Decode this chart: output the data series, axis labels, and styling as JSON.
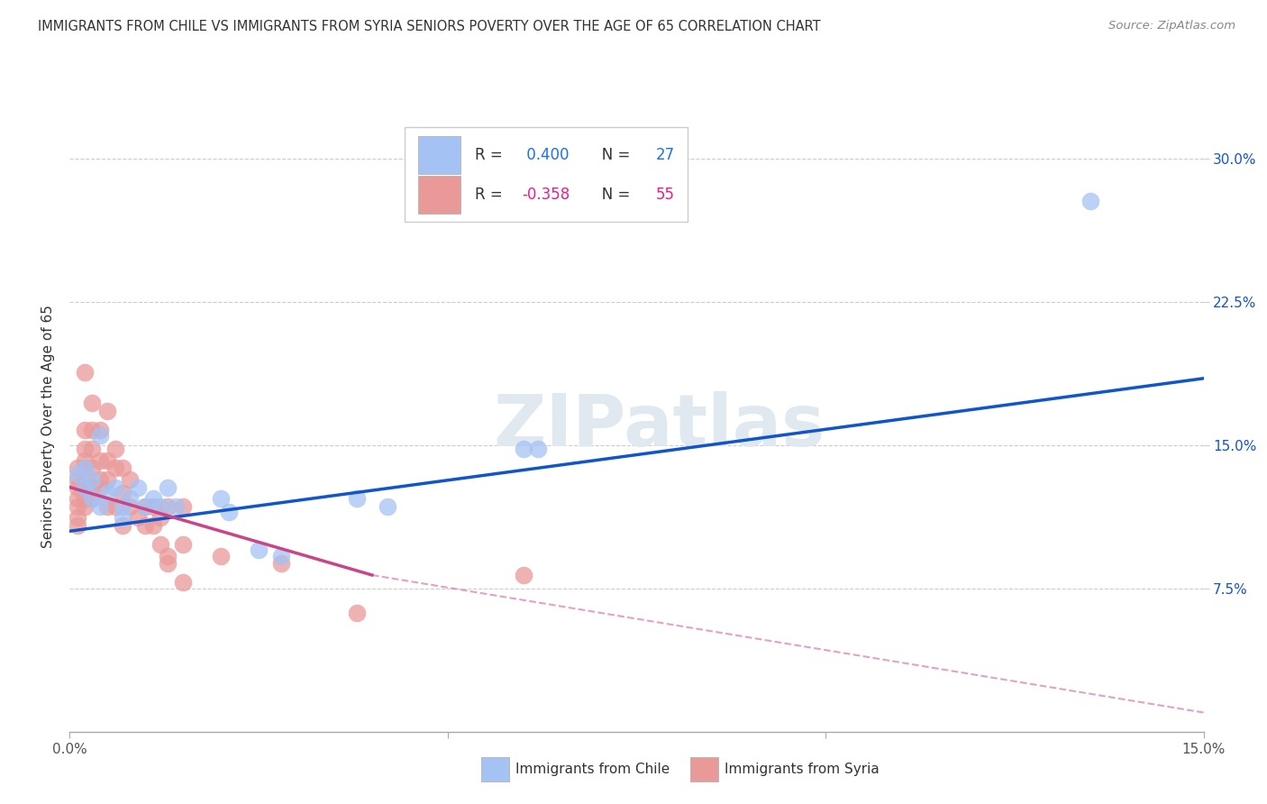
{
  "title": "IMMIGRANTS FROM CHILE VS IMMIGRANTS FROM SYRIA SENIORS POVERTY OVER THE AGE OF 65 CORRELATION CHART",
  "source": "Source: ZipAtlas.com",
  "ylabel": "Seniors Poverty Over the Age of 65",
  "xlabel_chile": "Immigrants from Chile",
  "xlabel_syria": "Immigrants from Syria",
  "watermark": "ZIPatlas",
  "xlim": [
    0.0,
    0.15
  ],
  "ylim": [
    0.0,
    0.32
  ],
  "xticks": [
    0.0,
    0.05,
    0.1,
    0.15
  ],
  "xtick_labels": [
    "0.0%",
    "",
    "",
    ""
  ],
  "yticks": [
    0.075,
    0.15,
    0.225,
    0.3
  ],
  "ytick_labels": [
    "7.5%",
    "15.0%",
    "22.5%",
    "30.0%"
  ],
  "chile_R": 0.4,
  "chile_N": 27,
  "syria_R": -0.358,
  "syria_N": 55,
  "chile_color": "#a4c2f4",
  "syria_color": "#ea9999",
  "chile_line_color": "#1155cc",
  "syria_line_color": "#cc4488",
  "chile_scatter": [
    [
      0.001,
      0.135
    ],
    [
      0.002,
      0.138
    ],
    [
      0.002,
      0.128
    ],
    [
      0.003,
      0.132
    ],
    [
      0.003,
      0.122
    ],
    [
      0.004,
      0.155
    ],
    [
      0.004,
      0.118
    ],
    [
      0.005,
      0.125
    ],
    [
      0.006,
      0.128
    ],
    [
      0.007,
      0.118
    ],
    [
      0.007,
      0.112
    ],
    [
      0.008,
      0.122
    ],
    [
      0.009,
      0.128
    ],
    [
      0.01,
      0.118
    ],
    [
      0.011,
      0.122
    ],
    [
      0.012,
      0.118
    ],
    [
      0.013,
      0.128
    ],
    [
      0.014,
      0.118
    ],
    [
      0.02,
      0.122
    ],
    [
      0.021,
      0.115
    ],
    [
      0.025,
      0.095
    ],
    [
      0.028,
      0.092
    ],
    [
      0.038,
      0.122
    ],
    [
      0.042,
      0.118
    ],
    [
      0.06,
      0.148
    ],
    [
      0.062,
      0.148
    ],
    [
      0.135,
      0.278
    ]
  ],
  "syria_scatter": [
    [
      0.001,
      0.138
    ],
    [
      0.001,
      0.132
    ],
    [
      0.001,
      0.128
    ],
    [
      0.001,
      0.122
    ],
    [
      0.001,
      0.118
    ],
    [
      0.001,
      0.112
    ],
    [
      0.001,
      0.108
    ],
    [
      0.002,
      0.188
    ],
    [
      0.002,
      0.158
    ],
    [
      0.002,
      0.148
    ],
    [
      0.002,
      0.142
    ],
    [
      0.002,
      0.138
    ],
    [
      0.002,
      0.132
    ],
    [
      0.002,
      0.128
    ],
    [
      0.002,
      0.122
    ],
    [
      0.002,
      0.118
    ],
    [
      0.003,
      0.172
    ],
    [
      0.003,
      0.158
    ],
    [
      0.003,
      0.148
    ],
    [
      0.003,
      0.138
    ],
    [
      0.003,
      0.128
    ],
    [
      0.003,
      0.122
    ],
    [
      0.004,
      0.158
    ],
    [
      0.004,
      0.142
    ],
    [
      0.004,
      0.132
    ],
    [
      0.004,
      0.128
    ],
    [
      0.005,
      0.168
    ],
    [
      0.005,
      0.142
    ],
    [
      0.005,
      0.132
    ],
    [
      0.005,
      0.118
    ],
    [
      0.006,
      0.148
    ],
    [
      0.006,
      0.138
    ],
    [
      0.006,
      0.118
    ],
    [
      0.007,
      0.138
    ],
    [
      0.007,
      0.125
    ],
    [
      0.007,
      0.108
    ],
    [
      0.008,
      0.132
    ],
    [
      0.008,
      0.118
    ],
    [
      0.009,
      0.112
    ],
    [
      0.01,
      0.118
    ],
    [
      0.01,
      0.108
    ],
    [
      0.011,
      0.118
    ],
    [
      0.011,
      0.108
    ],
    [
      0.012,
      0.112
    ],
    [
      0.012,
      0.098
    ],
    [
      0.013,
      0.118
    ],
    [
      0.013,
      0.092
    ],
    [
      0.013,
      0.088
    ],
    [
      0.015,
      0.118
    ],
    [
      0.015,
      0.098
    ],
    [
      0.015,
      0.078
    ],
    [
      0.02,
      0.092
    ],
    [
      0.028,
      0.088
    ],
    [
      0.038,
      0.062
    ],
    [
      0.06,
      0.082
    ]
  ],
  "background_color": "#ffffff",
  "grid_color": "#cccccc"
}
